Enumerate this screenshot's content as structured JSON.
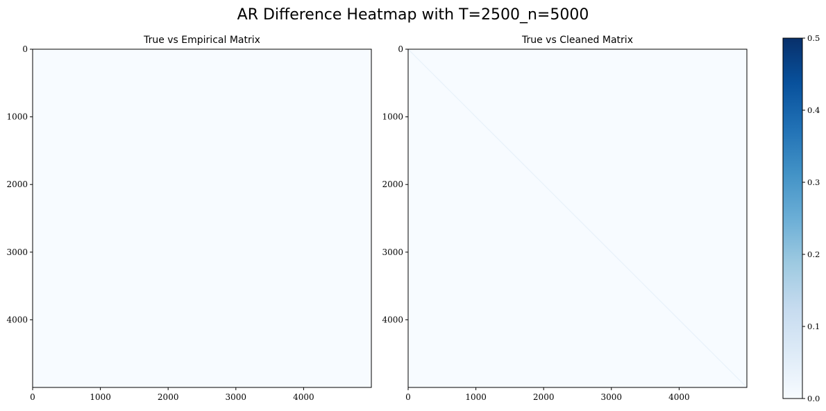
{
  "chart_data": {
    "type": "heatmap",
    "title": "AR Difference Heatmap with T=2500_n=5000",
    "colormap": "Blues",
    "colors": {
      "background": "#f7fbff",
      "diagonal": "#e8f1fa",
      "colormap_stops": [
        "#f7fbff",
        "#deebf7",
        "#c6dbef",
        "#9ecae1",
        "#6baed6",
        "#4292c6",
        "#2171b5",
        "#08519c",
        "#08306b"
      ]
    },
    "panels": [
      {
        "title": "True vs Empirical Matrix",
        "x_ticks": [
          "0",
          "1000",
          "2000",
          "3000",
          "4000"
        ],
        "y_ticks": [
          "0",
          "1000",
          "2000",
          "3000",
          "4000"
        ],
        "x_tick_values": [
          0,
          1000,
          2000,
          3000,
          4000
        ],
        "y_tick_values": [
          0,
          1000,
          2000,
          3000,
          4000
        ],
        "xlim": [
          0,
          5000
        ],
        "ylim": [
          0,
          5000
        ],
        "approx_value": 0.002,
        "diagonal_visible": false
      },
      {
        "title": "True vs Cleaned Matrix",
        "x_ticks": [
          "0",
          "1000",
          "2000",
          "3000",
          "4000"
        ],
        "y_ticks": [
          "0",
          "1000",
          "2000",
          "3000",
          "4000"
        ],
        "x_tick_values": [
          0,
          1000,
          2000,
          3000,
          4000
        ],
        "y_tick_values": [
          0,
          1000,
          2000,
          3000,
          4000
        ],
        "xlim": [
          0,
          5000
        ],
        "ylim": [
          0,
          5000
        ],
        "approx_value": 0.001,
        "diagonal_visible": true,
        "diagonal_value": 0.02
      }
    ],
    "colorbar": {
      "range": [
        0,
        0.5
      ],
      "ticks": [
        "0.0",
        "0.1",
        "0.2",
        "0.3",
        "0.4",
        "0.5"
      ],
      "tick_values": [
        0,
        0.1,
        0.2,
        0.3,
        0.4,
        0.5
      ]
    }
  }
}
